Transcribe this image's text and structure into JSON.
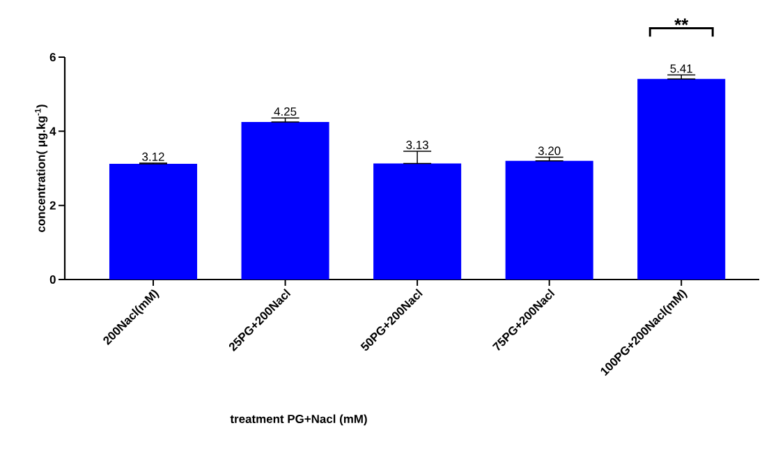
{
  "chart_data": {
    "type": "bar",
    "xlabel": "treatment PG+Nacl (mM)",
    "ylabel": "concentration( μg.kg$^{-1}$)",
    "categories": [
      "200Nacl(mM)",
      "25PG+200Nacl",
      "50PG+200Nacl",
      "75PG+200Nacl",
      "100PG+200Nacl(mM)"
    ],
    "values": [
      3.12,
      4.25,
      3.13,
      3.2,
      5.41
    ],
    "value_labels": [
      "3.12",
      "4.25",
      "3.13",
      "3.20",
      "5.41"
    ],
    "errors": [
      [
        3.12,
        3.14
      ],
      [
        4.25,
        4.36
      ],
      [
        3.13,
        3.46
      ],
      [
        3.2,
        3.3
      ],
      [
        5.41,
        5.52
      ]
    ],
    "color": "#0000ff",
    "ylim": [
      0,
      6
    ],
    "yticks": [
      0,
      2,
      4,
      6
    ],
    "annotations": [
      "**"
    ]
  }
}
